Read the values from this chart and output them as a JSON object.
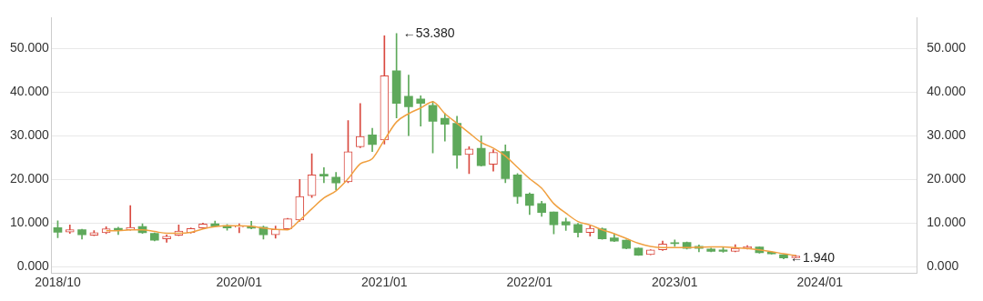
{
  "chart_data": {
    "type": "candlestick",
    "x": [
      "2018-10",
      "2018-11",
      "2018-12",
      "2019-01",
      "2019-02",
      "2019-03",
      "2019-04",
      "2019-05",
      "2019-06",
      "2019-07",
      "2019-08",
      "2019-09",
      "2019-10",
      "2019-11",
      "2019-12",
      "2020-01",
      "2020-02",
      "2020-03",
      "2020-04",
      "2020-05",
      "2020-06",
      "2020-07",
      "2020-08",
      "2020-09",
      "2020-10",
      "2020-11",
      "2020-12",
      "2021-01",
      "2021-02",
      "2021-03",
      "2021-04",
      "2021-05",
      "2021-06",
      "2021-07",
      "2021-08",
      "2021-09",
      "2021-10",
      "2021-11",
      "2021-12",
      "2022-01",
      "2022-02",
      "2022-03",
      "2022-04",
      "2022-05",
      "2022-06",
      "2022-07",
      "2022-08",
      "2022-09",
      "2022-10",
      "2022-11",
      "2022-12",
      "2023-01",
      "2023-02",
      "2023-03",
      "2023-04",
      "2023-05",
      "2023-06",
      "2023-07",
      "2023-08",
      "2023-09",
      "2023-10",
      "2023-11"
    ],
    "ohlc": [
      [
        8.88,
        10.46,
        6.58,
        7.83
      ],
      [
        7.89,
        9.54,
        7.57,
        8.42
      ],
      [
        8.42,
        8.5,
        6.25,
        7.24
      ],
      [
        7.17,
        8.22,
        7.04,
        7.76
      ],
      [
        7.7,
        9.08,
        7.5,
        8.62
      ],
      [
        8.75,
        9.01,
        7.3,
        8.22
      ],
      [
        8.42,
        13.95,
        8.29,
        8.95
      ],
      [
        9.14,
        9.8,
        7.57,
        7.7
      ],
      [
        7.57,
        7.7,
        5.86,
        5.99
      ],
      [
        6.32,
        7.24,
        5.53,
        6.91
      ],
      [
        7.17,
        9.54,
        7.04,
        8.09
      ],
      [
        7.76,
        8.82,
        7.63,
        8.68
      ],
      [
        8.82,
        9.93,
        8.75,
        9.74
      ],
      [
        9.8,
        10.39,
        9.01,
        9.21
      ],
      [
        9.34,
        9.6,
        8.3,
        8.82
      ],
      [
        8.95,
        9.8,
        7.7,
        9.14
      ],
      [
        9.14,
        10.33,
        8.62,
        8.75
      ],
      [
        9.01,
        9.28,
        6.25,
        7.24
      ],
      [
        7.24,
        9.28,
        6.45,
        8.49
      ],
      [
        8.6,
        11.0,
        8.42,
        10.9
      ],
      [
        10.63,
        19.94,
        10.32,
        16.01
      ],
      [
        16.2,
        25.82,
        15.82,
        20.95
      ],
      [
        21.14,
        22.66,
        19.18,
        20.7
      ],
      [
        20.44,
        21.52,
        17.59,
        19.11
      ],
      [
        19.37,
        33.42,
        19.18,
        26.27
      ],
      [
        27.41,
        37.34,
        27.22,
        29.75
      ],
      [
        30.13,
        31.65,
        26.33,
        27.91
      ],
      [
        28.99,
        52.85,
        28.04,
        43.67
      ],
      [
        44.81,
        53.38,
        34.05,
        37.34
      ],
      [
        38.99,
        43.86,
        29.94,
        36.58
      ],
      [
        38.35,
        39.11,
        32.15,
        37.34
      ],
      [
        36.9,
        37.85,
        26.01,
        33.23
      ],
      [
        33.92,
        35.06,
        28.73,
        32.59
      ],
      [
        32.78,
        34.43,
        22.47,
        25.51
      ],
      [
        25.63,
        27.41,
        21.27,
        26.9
      ],
      [
        27.09,
        29.94,
        22.97,
        23.1
      ],
      [
        23.42,
        26.77,
        21.84,
        26.14
      ],
      [
        26.33,
        27.85,
        19.18,
        20.13
      ],
      [
        20.95,
        21.27,
        14.43,
        16.01
      ],
      [
        16.58,
        16.84,
        11.9,
        13.99
      ],
      [
        14.43,
        14.94,
        11.46,
        12.34
      ],
      [
        12.47,
        12.5,
        7.47,
        9.56
      ],
      [
        10.25,
        11.08,
        8.23,
        9.49
      ],
      [
        9.62,
        9.87,
        6.71,
        7.78
      ],
      [
        7.78,
        9.37,
        6.96,
        8.73
      ],
      [
        8.61,
        8.86,
        6.2,
        6.33
      ],
      [
        6.52,
        7.47,
        5.7,
        5.82
      ],
      [
        6.01,
        6.08,
        4.05,
        4.11
      ],
      [
        4.18,
        4.24,
        2.53,
        2.59
      ],
      [
        2.72,
        3.86,
        2.66,
        3.8
      ],
      [
        3.8,
        5.82,
        3.67,
        5.13
      ],
      [
        5.44,
        6.08,
        4.62,
        5.25
      ],
      [
        5.51,
        5.63,
        3.99,
        4.11
      ],
      [
        4.62,
        4.94,
        3.35,
        4.11
      ],
      [
        4.0,
        4.19,
        3.35,
        3.48
      ],
      [
        3.81,
        4.32,
        3.23,
        3.48
      ],
      [
        3.48,
        4.97,
        3.35,
        4.13
      ],
      [
        4.13,
        4.77,
        4.0,
        4.58
      ],
      [
        4.45,
        4.52,
        3.03,
        3.16
      ],
      [
        3.29,
        3.35,
        2.84,
        2.9
      ],
      [
        2.71,
        2.71,
        1.74,
        1.94
      ],
      [
        2.0,
        2.52,
        1.98,
        2.39
      ]
    ],
    "colors": [
      "#5ea95b",
      "#d9493f",
      "#5ea95b",
      "#d9493f",
      "#d9493f",
      "#5ea95b",
      "#d9493f",
      "#5ea95b",
      "#5ea95b",
      "#d9493f",
      "#d9493f",
      "#d9493f",
      "#d9493f",
      "#5ea95b",
      "#5ea95b",
      "#d9493f",
      "#5ea95b",
      "#5ea95b",
      "#d9493f",
      "#d9493f",
      "#d9493f",
      "#d9493f",
      "#5ea95b",
      "#5ea95b",
      "#d9493f",
      "#d9493f",
      "#5ea95b",
      "#d9493f",
      "#5ea95b",
      "#5ea95b",
      "#5ea95b",
      "#5ea95b",
      "#5ea95b",
      "#5ea95b",
      "#d9493f",
      "#5ea95b",
      "#d9493f",
      "#5ea95b",
      "#5ea95b",
      "#5ea95b",
      "#5ea95b",
      "#5ea95b",
      "#5ea95b",
      "#5ea95b",
      "#d9493f",
      "#5ea95b",
      "#5ea95b",
      "#5ea95b",
      "#5ea95b",
      "#d9493f",
      "#d9493f",
      "#5ea95b",
      "#5ea95b",
      "#5ea95b",
      "#5ea95b",
      "#5ea95b",
      "#d9493f",
      "#d9493f",
      "#5ea95b",
      "#5ea95b",
      "#5ea95b",
      "#d9493f"
    ],
    "series": [
      {
        "type": "line",
        "color": "#f0a040",
        "values": [
          null,
          null,
          null,
          null,
          8.2,
          8.2,
          8.4,
          8.4,
          8.0,
          7.6,
          7.6,
          7.8,
          8.6,
          9.1,
          9.3,
          9.3,
          9.2,
          8.8,
          8.5,
          8.4,
          10.6,
          13.2,
          15.7,
          17.3,
          20.1,
          23.5,
          24.7,
          29.0,
          33.1,
          35.0,
          36.3,
          37.7,
          35.0,
          32.8,
          30.6,
          28.4,
          27.1,
          25.3,
          22.7,
          20.1,
          17.9,
          14.4,
          12.2,
          10.3,
          9.5,
          8.4,
          7.5,
          6.4,
          5.3,
          4.6,
          4.3,
          4.3,
          4.3,
          4.4,
          4.5,
          4.5,
          4.3,
          4.1,
          3.8,
          3.4,
          2.9,
          2.5
        ]
      }
    ],
    "xlim": [
      "2018-09-16",
      "2024-09-01"
    ],
    "xticks": [
      {
        "value": "2018-10",
        "label": "2018/10"
      },
      {
        "value": "2020-01",
        "label": "2020/01"
      },
      {
        "value": "2021-01",
        "label": "2021/01"
      },
      {
        "value": "2022-01",
        "label": "2022/01"
      },
      {
        "value": "2023-01",
        "label": "2023/01"
      },
      {
        "value": "2024-01",
        "label": "2024/01"
      }
    ],
    "ylim": [
      -1.5,
      57
    ],
    "yticks": [
      {
        "value": 0,
        "label": "0.000"
      },
      {
        "value": 10,
        "label": "10.000"
      },
      {
        "value": 20,
        "label": "20.000"
      },
      {
        "value": 30,
        "label": "30.000"
      },
      {
        "value": 40,
        "label": "40.000"
      },
      {
        "value": 50,
        "label": "50.000"
      }
    ],
    "y2lim": [
      -1.5,
      57
    ],
    "y2ticks": [
      {
        "value": 0,
        "label": "0.000"
      },
      {
        "value": 10,
        "label": "10.000"
      },
      {
        "value": 20,
        "label": "20.000"
      },
      {
        "value": 30,
        "label": "30.000"
      },
      {
        "value": 40,
        "label": "40.000"
      },
      {
        "value": 50,
        "label": "50.000"
      }
    ],
    "grid": "y",
    "legend": false,
    "annotations": [
      {
        "text": "←53.380",
        "x": "2021-02",
        "y": 53.38
      },
      {
        "text": "←1.940",
        "x": "2023-10",
        "y": 1.94
      }
    ]
  }
}
